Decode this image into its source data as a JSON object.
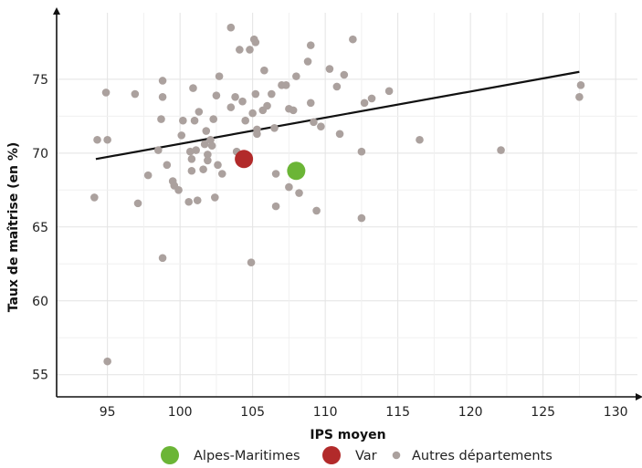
{
  "chart_data": {
    "type": "scatter",
    "xlabel": "IPS moyen",
    "ylabel": "Taux de maîtrise (en %)",
    "xlim": [
      91.5,
      131.5
    ],
    "ylim": [
      53.5,
      79.5
    ],
    "x_ticks": [
      95,
      100,
      105,
      110,
      115,
      120,
      125,
      130
    ],
    "y_ticks": [
      55,
      60,
      65,
      70,
      75
    ],
    "grid": true,
    "legend_position": "bottom",
    "trend_line": {
      "x": [
        94.2,
        127.5
      ],
      "y": [
        69.6,
        75.5
      ],
      "color": "#111111"
    },
    "series": [
      {
        "name": "Alpes-Maritimes",
        "color": "#6bb536",
        "size": "large",
        "points": [
          {
            "x": 108.0,
            "y": 68.8
          }
        ]
      },
      {
        "name": "Var",
        "color": "#b22a2a",
        "size": "large",
        "points": [
          {
            "x": 104.4,
            "y": 69.6
          }
        ]
      },
      {
        "name": "Autres départements",
        "color": "#aba19e",
        "size": "small",
        "points": [
          {
            "x": 94.1,
            "y": 67.0
          },
          {
            "x": 94.3,
            "y": 70.9
          },
          {
            "x": 94.9,
            "y": 74.1
          },
          {
            "x": 95.0,
            "y": 70.9
          },
          {
            "x": 95.0,
            "y": 55.9
          },
          {
            "x": 96.9,
            "y": 74.0
          },
          {
            "x": 97.1,
            "y": 66.6
          },
          {
            "x": 97.8,
            "y": 68.5
          },
          {
            "x": 98.5,
            "y": 70.2
          },
          {
            "x": 98.7,
            "y": 72.3
          },
          {
            "x": 98.8,
            "y": 74.9
          },
          {
            "x": 98.8,
            "y": 73.8
          },
          {
            "x": 98.8,
            "y": 62.9
          },
          {
            "x": 99.1,
            "y": 69.2
          },
          {
            "x": 99.5,
            "y": 68.1
          },
          {
            "x": 99.6,
            "y": 67.8
          },
          {
            "x": 99.9,
            "y": 67.5
          },
          {
            "x": 100.1,
            "y": 71.2
          },
          {
            "x": 100.2,
            "y": 72.2
          },
          {
            "x": 100.6,
            "y": 66.7
          },
          {
            "x": 100.7,
            "y": 70.1
          },
          {
            "x": 100.8,
            "y": 69.6
          },
          {
            "x": 100.8,
            "y": 68.8
          },
          {
            "x": 100.9,
            "y": 74.4
          },
          {
            "x": 101.0,
            "y": 72.2
          },
          {
            "x": 101.1,
            "y": 70.2
          },
          {
            "x": 101.2,
            "y": 66.8
          },
          {
            "x": 101.3,
            "y": 72.8
          },
          {
            "x": 101.6,
            "y": 68.9
          },
          {
            "x": 101.7,
            "y": 70.6
          },
          {
            "x": 101.8,
            "y": 71.5
          },
          {
            "x": 101.9,
            "y": 69.9
          },
          {
            "x": 101.9,
            "y": 69.5
          },
          {
            "x": 102.1,
            "y": 70.9
          },
          {
            "x": 102.2,
            "y": 70.5
          },
          {
            "x": 102.3,
            "y": 72.3
          },
          {
            "x": 102.4,
            "y": 67.0
          },
          {
            "x": 102.5,
            "y": 73.9
          },
          {
            "x": 102.6,
            "y": 69.2
          },
          {
            "x": 102.7,
            "y": 75.2
          },
          {
            "x": 102.9,
            "y": 68.6
          },
          {
            "x": 103.5,
            "y": 78.5
          },
          {
            "x": 103.5,
            "y": 73.1
          },
          {
            "x": 103.8,
            "y": 73.8
          },
          {
            "x": 103.9,
            "y": 70.1
          },
          {
            "x": 104.1,
            "y": 77.0
          },
          {
            "x": 104.3,
            "y": 73.5
          },
          {
            "x": 104.5,
            "y": 72.2
          },
          {
            "x": 104.7,
            "y": 69.8
          },
          {
            "x": 104.8,
            "y": 77.0
          },
          {
            "x": 104.9,
            "y": 62.6
          },
          {
            "x": 105.0,
            "y": 72.7
          },
          {
            "x": 105.1,
            "y": 77.7
          },
          {
            "x": 105.2,
            "y": 77.5
          },
          {
            "x": 105.2,
            "y": 74.0
          },
          {
            "x": 105.3,
            "y": 71.6
          },
          {
            "x": 105.3,
            "y": 71.3
          },
          {
            "x": 105.7,
            "y": 72.9
          },
          {
            "x": 105.8,
            "y": 75.6
          },
          {
            "x": 106.0,
            "y": 73.2
          },
          {
            "x": 106.3,
            "y": 74.0
          },
          {
            "x": 106.5,
            "y": 71.7
          },
          {
            "x": 106.6,
            "y": 68.6
          },
          {
            "x": 106.6,
            "y": 66.4
          },
          {
            "x": 107.0,
            "y": 74.6
          },
          {
            "x": 107.3,
            "y": 74.6
          },
          {
            "x": 107.5,
            "y": 73.0
          },
          {
            "x": 107.5,
            "y": 67.7
          },
          {
            "x": 107.8,
            "y": 72.9
          },
          {
            "x": 108.0,
            "y": 75.2
          },
          {
            "x": 108.2,
            "y": 67.3
          },
          {
            "x": 108.8,
            "y": 76.2
          },
          {
            "x": 109.0,
            "y": 77.3
          },
          {
            "x": 109.0,
            "y": 73.4
          },
          {
            "x": 109.2,
            "y": 72.1
          },
          {
            "x": 109.4,
            "y": 66.1
          },
          {
            "x": 109.7,
            "y": 71.8
          },
          {
            "x": 110.3,
            "y": 75.7
          },
          {
            "x": 110.8,
            "y": 74.5
          },
          {
            "x": 111.0,
            "y": 71.3
          },
          {
            "x": 111.3,
            "y": 75.3
          },
          {
            "x": 111.9,
            "y": 77.7
          },
          {
            "x": 112.5,
            "y": 70.1
          },
          {
            "x": 112.5,
            "y": 65.6
          },
          {
            "x": 112.7,
            "y": 73.4
          },
          {
            "x": 113.2,
            "y": 73.7
          },
          {
            "x": 114.4,
            "y": 74.2
          },
          {
            "x": 116.5,
            "y": 70.9
          },
          {
            "x": 122.1,
            "y": 70.2
          },
          {
            "x": 127.5,
            "y": 73.8
          },
          {
            "x": 127.6,
            "y": 74.6
          }
        ]
      }
    ]
  }
}
